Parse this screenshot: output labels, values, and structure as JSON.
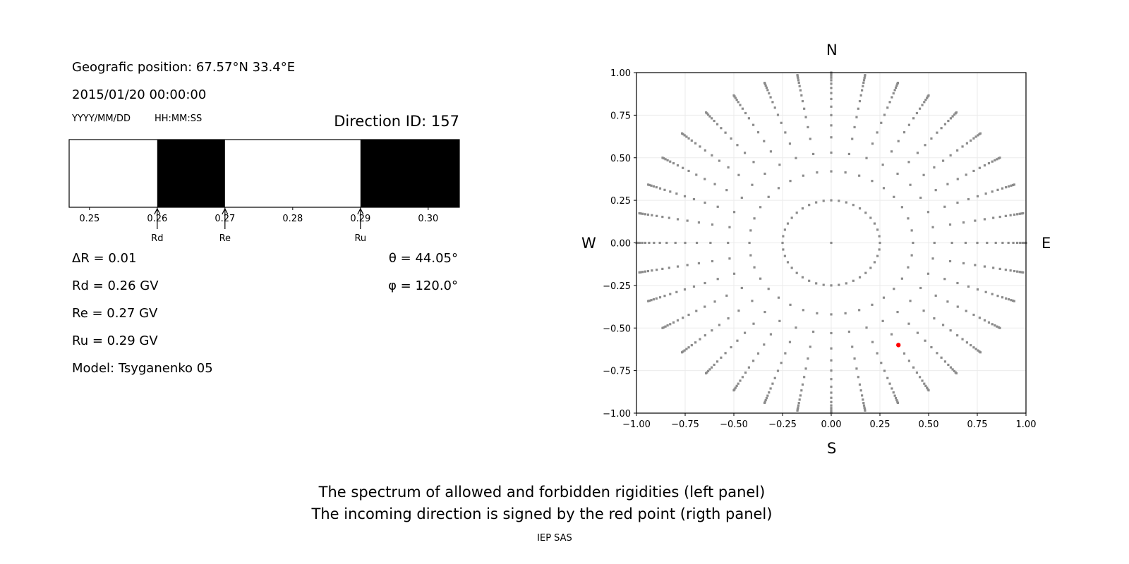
{
  "left_panel": {
    "position": "Geografic position: 67.57°N 33.4°E",
    "datetime": "2015/01/20 00:00:00",
    "date_format": "YYYY/MM/DD",
    "time_format": "HH:MM:SS",
    "direction_id": "Direction ID: 157",
    "delta_r": "ΔR = 0.01",
    "rd": "Rd = 0.26 GV",
    "re": "Re = 0.27 GV",
    "ru": "Ru = 0.29 GV",
    "model": "Model: Tsyganenko 05",
    "theta": "θ = 44.05°",
    "phi": "φ = 120.0°"
  },
  "right_panel": {
    "north": "N",
    "south": "S",
    "west": "W",
    "east": "E"
  },
  "caption": {
    "line1": "The spectrum of allowed and forbidden rigidities (left panel)",
    "line2": "The incoming direction is signed by the red point (rigth panel)",
    "footer": "IEP SAS"
  },
  "chart_data": [
    {
      "type": "bar",
      "xlim": [
        0.247,
        0.3046
      ],
      "xticks": [
        "0.25",
        "0.26",
        "0.27",
        "0.28",
        "0.29",
        "0.30"
      ],
      "forbidden_bands": [
        [
          0.26,
          0.27
        ],
        [
          0.29,
          0.3046
        ]
      ],
      "allowed_color": "#ffffff",
      "forbidden_color": "#000000",
      "markers": [
        {
          "label": "Rd",
          "value": 0.26
        },
        {
          "label": "Re",
          "value": 0.27
        },
        {
          "label": "Ru",
          "value": 0.29
        }
      ]
    },
    {
      "type": "scatter",
      "xlim": [
        -1.0,
        1.0
      ],
      "ylim": [
        -1.0,
        1.0
      ],
      "xticks": [
        "−1.00",
        "−0.75",
        "−0.50",
        "−0.25",
        "0.00",
        "0.25",
        "0.50",
        "0.75",
        "1.00"
      ],
      "yticks": [
        "−1.00",
        "−0.75",
        "−0.50",
        "−0.25",
        "0.00",
        "0.25",
        "0.50",
        "0.75",
        "1.00"
      ],
      "grid": true,
      "grid_points": {
        "center": [
          0,
          0
        ],
        "inner_ring_radius": 0.25,
        "inner_ring_count": 40,
        "spoke_azimuth_step_deg": 10,
        "spoke_radii": [
          0.42,
          0.53,
          0.62,
          0.69,
          0.75,
          0.8,
          0.845,
          0.88,
          0.91,
          0.935,
          0.955,
          0.97,
          0.983,
          0.993,
          1.0
        ],
        "color": "#8c8c8c"
      },
      "highlight_point": {
        "x": 0.345,
        "y": -0.6,
        "color": "#ff0000"
      }
    }
  ]
}
